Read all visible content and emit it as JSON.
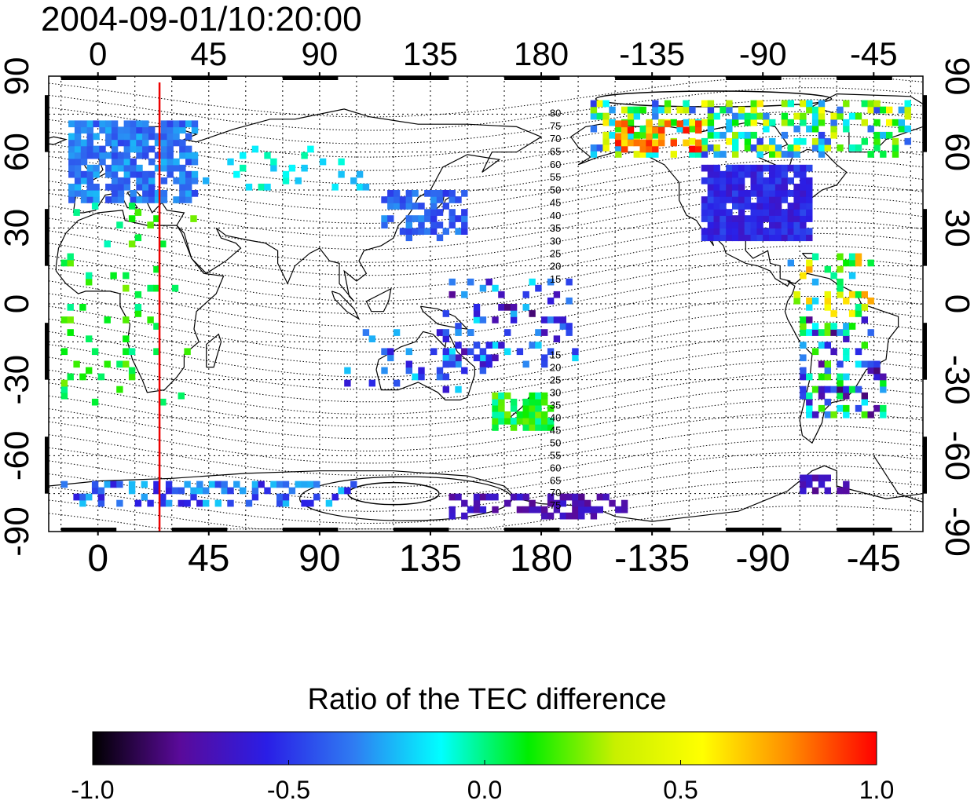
{
  "title": "2004-09-01/10:20:00",
  "axes": {
    "lon_ticks": [
      {
        "value": 0,
        "label": "0"
      },
      {
        "value": 45,
        "label": "45"
      },
      {
        "value": 90,
        "label": "90"
      },
      {
        "value": 135,
        "label": "135"
      },
      {
        "value": 180,
        "label": "180"
      },
      {
        "value": 225,
        "label": "-135"
      },
      {
        "value": 270,
        "label": "-90"
      },
      {
        "value": 315,
        "label": "-45"
      }
    ],
    "lat_ticks": [
      {
        "value": 90,
        "label": "90"
      },
      {
        "value": 60,
        "label": "60"
      },
      {
        "value": 30,
        "label": "30"
      },
      {
        "value": 0,
        "label": "0"
      },
      {
        "value": -30,
        "label": "-30"
      },
      {
        "value": -60,
        "label": "-60"
      },
      {
        "value": -90,
        "label": "-90"
      }
    ],
    "lon_range": [
      -20,
      335
    ],
    "lat_range": [
      -90,
      90
    ]
  },
  "marker_line_lon": 25,
  "contour_labels": {
    "north": [
      "80",
      "75",
      "70",
      "65",
      "60",
      "55",
      "50",
      "45",
      "40",
      "35",
      "30",
      "25",
      "20",
      "15"
    ],
    "south": [
      "15",
      "20",
      "25",
      "30",
      "35",
      "40",
      "45",
      "50",
      "55",
      "60",
      "65",
      "70",
      "75"
    ]
  },
  "colorbar": {
    "title": "Ratio of the TEC difference",
    "min": -1.0,
    "max": 1.0,
    "tick_labels": [
      "-1.0",
      "-0.5",
      "0.0",
      "0.5",
      "1.0"
    ],
    "colors": [
      "#000000",
      "#5a0a9a",
      "#2a1ee6",
      "#2f7cf2",
      "#00ffff",
      "#00ee00",
      "#c8f000",
      "#ffff00",
      "#ff8c00",
      "#ff0000"
    ]
  },
  "colors": {
    "marker_line": "#ee0000",
    "frame": "#000000",
    "grid": "#000000"
  }
}
